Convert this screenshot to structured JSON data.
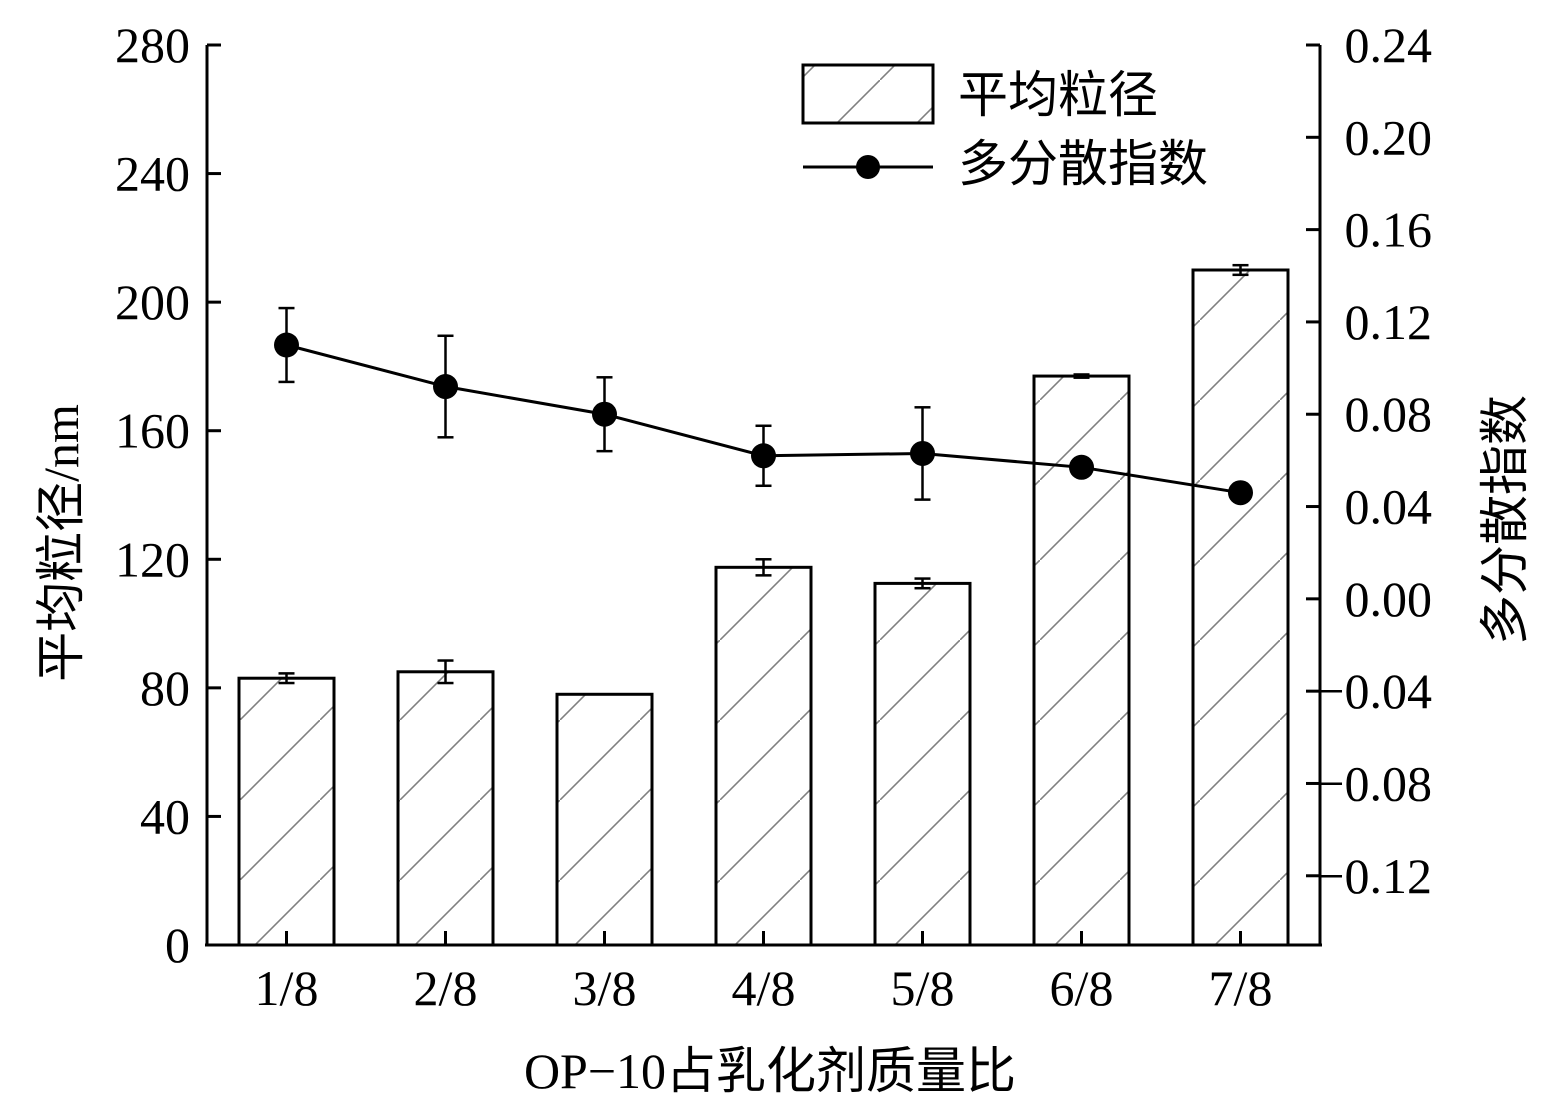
{
  "chart_data": {
    "type": "bar",
    "xlabel": "OP−10占乳化剂质量比",
    "ylabel": "平均粒径/nm",
    "ylabel_right": "多分散指数",
    "categories": [
      "1/8",
      "2/8",
      "3/8",
      "4/8",
      "5/8",
      "6/8",
      "7/8"
    ],
    "ylim": [
      0,
      280
    ],
    "yticks": [
      "0",
      "40",
      "80",
      "120",
      "160",
      "200",
      "240",
      "280"
    ],
    "y2lim": [
      -0.15,
      0.24
    ],
    "y2ticks": [
      "−0.12",
      "−0.08",
      "−0.04",
      "0.00",
      "0.04",
      "0.08",
      "0.12",
      "0.16",
      "0.20",
      "0.24"
    ],
    "legend_position": "top-right",
    "grid": false,
    "series": [
      {
        "name": "平均粒径",
        "type": "bar",
        "axis": "left",
        "pattern": "hatched",
        "values": [
          83,
          85,
          78,
          117.5,
          112.5,
          177,
          210
        ],
        "errors": [
          1.5,
          3.5,
          0,
          2.5,
          1.5,
          0.5,
          1.5
        ]
      },
      {
        "name": "多分散指数",
        "type": "line",
        "axis": "right",
        "marker": "circle",
        "values": [
          0.11,
          0.092,
          0.08,
          0.062,
          0.063,
          0.057,
          0.046
        ],
        "errors": [
          0.016,
          0.022,
          0.016,
          0.013,
          0.02,
          0.003,
          0.001
        ]
      }
    ]
  }
}
